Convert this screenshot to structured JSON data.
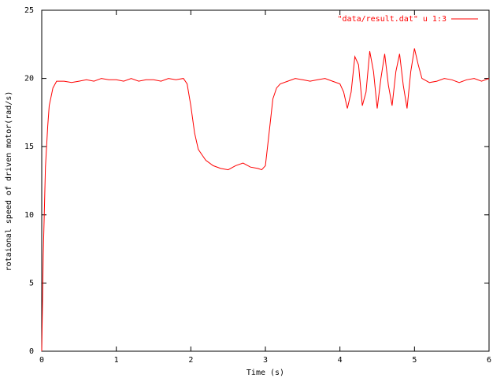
{
  "chart_data": {
    "type": "line",
    "title": "",
    "xlabel": "Time (s)",
    "ylabel": "rotaional speed of driven motor(rad/s)",
    "xlim": [
      0,
      6
    ],
    "ylim": [
      0,
      25
    ],
    "xticks": [
      0,
      1,
      2,
      3,
      4,
      5,
      6
    ],
    "yticks": [
      0,
      5,
      10,
      15,
      20,
      25
    ],
    "grid": false,
    "legend_position": "top-right",
    "series": [
      {
        "name": "\"data/result.dat\" u 1:3",
        "color": "#ff0000",
        "x": [
          0.0,
          0.02,
          0.05,
          0.08,
          0.1,
          0.15,
          0.2,
          0.3,
          0.4,
          0.5,
          0.6,
          0.7,
          0.8,
          0.9,
          1.0,
          1.1,
          1.2,
          1.3,
          1.4,
          1.5,
          1.6,
          1.7,
          1.8,
          1.9,
          1.95,
          2.0,
          2.05,
          2.1,
          2.15,
          2.2,
          2.3,
          2.4,
          2.5,
          2.6,
          2.7,
          2.8,
          2.9,
          2.95,
          3.0,
          3.05,
          3.1,
          3.15,
          3.2,
          3.3,
          3.4,
          3.5,
          3.6,
          3.7,
          3.8,
          3.9,
          4.0,
          4.05,
          4.1,
          4.15,
          4.2,
          4.25,
          4.3,
          4.35,
          4.4,
          4.45,
          4.5,
          4.55,
          4.6,
          4.65,
          4.7,
          4.75,
          4.8,
          4.85,
          4.9,
          4.95,
          5.0,
          5.05,
          5.1,
          5.2,
          5.3,
          5.4,
          5.5,
          5.6,
          5.7,
          5.8,
          5.9,
          6.0
        ],
        "y": [
          0.0,
          7.0,
          13.5,
          16.5,
          18.0,
          19.3,
          19.8,
          19.8,
          19.7,
          19.8,
          19.9,
          19.8,
          20.0,
          19.9,
          19.9,
          19.8,
          20.0,
          19.8,
          19.9,
          19.9,
          19.8,
          20.0,
          19.9,
          20.0,
          19.6,
          18.0,
          16.0,
          14.8,
          14.4,
          14.0,
          13.6,
          13.4,
          13.3,
          13.6,
          13.8,
          13.5,
          13.4,
          13.3,
          13.6,
          16.0,
          18.5,
          19.3,
          19.6,
          19.8,
          20.0,
          19.9,
          19.8,
          19.9,
          20.0,
          19.8,
          19.6,
          19.0,
          17.8,
          19.0,
          21.6,
          21.0,
          18.0,
          19.0,
          22.0,
          20.5,
          17.8,
          20.0,
          21.8,
          19.5,
          18.0,
          20.5,
          21.8,
          19.5,
          17.8,
          20.5,
          22.2,
          21.0,
          20.0,
          19.7,
          19.8,
          20.0,
          19.9,
          19.7,
          19.9,
          20.0,
          19.8,
          20.0
        ]
      }
    ]
  }
}
